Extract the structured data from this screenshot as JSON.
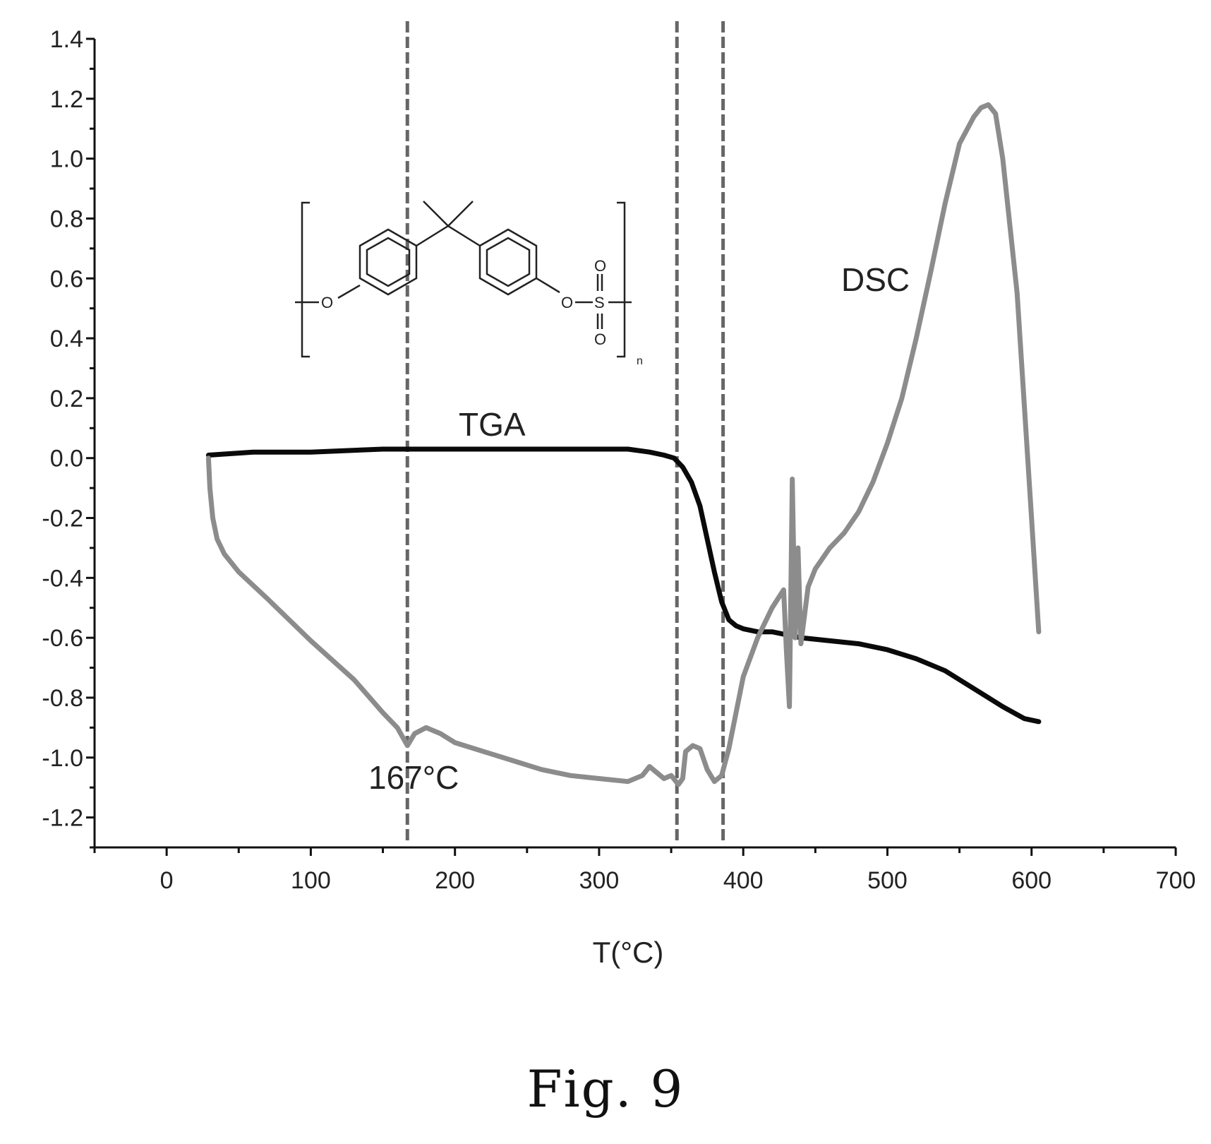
{
  "figure_caption": "Fig. 9",
  "chart_data": {
    "type": "line",
    "title": "",
    "xlabel": "T(°C)",
    "ylabel": "",
    "xlim": [
      -50,
      700
    ],
    "ylim": [
      -1.3,
      1.4
    ],
    "x_ticks": [
      0,
      100,
      200,
      300,
      400,
      500,
      600,
      700
    ],
    "x_tick_labels": [
      "0",
      "100",
      "200",
      "300",
      "400",
      "500",
      "600",
      "700"
    ],
    "y_ticks": [
      1.4,
      1.2,
      1.0,
      0.8,
      0.6,
      0.4,
      0.2,
      0.0,
      -0.2,
      -0.4,
      -0.6,
      -0.8,
      -1.0,
      -1.2
    ],
    "y_tick_labels": [
      "1.4",
      "1.2",
      "1.0",
      "0.8",
      "0.6",
      "0.4",
      "0.2",
      "0.0",
      "-0.2",
      "-0.4",
      "-0.6",
      "-0.8",
      "-1.0",
      "-1.2"
    ],
    "grid": false,
    "legend": "none",
    "series": [
      {
        "name": "TGA",
        "color": "#0a0a0a",
        "x": [
          29,
          60,
          100,
          150,
          200,
          250,
          300,
          320,
          335,
          345,
          352,
          358,
          364,
          370,
          375,
          380,
          385,
          390,
          395,
          400,
          410,
          420,
          440,
          460,
          480,
          500,
          520,
          540,
          560,
          580,
          595,
          605
        ],
        "y": [
          0.01,
          0.02,
          0.02,
          0.03,
          0.03,
          0.03,
          0.03,
          0.03,
          0.02,
          0.01,
          0.0,
          -0.03,
          -0.08,
          -0.16,
          -0.27,
          -0.38,
          -0.48,
          -0.54,
          -0.56,
          -0.57,
          -0.58,
          -0.58,
          -0.6,
          -0.61,
          -0.62,
          -0.64,
          -0.67,
          -0.71,
          -0.77,
          -0.83,
          -0.87,
          -0.88
        ]
      },
      {
        "name": "DSC",
        "color": "#8c8c8c",
        "x": [
          29,
          30,
          32,
          35,
          40,
          50,
          70,
          100,
          130,
          150,
          160,
          167,
          172,
          180,
          190,
          200,
          220,
          240,
          260,
          280,
          300,
          320,
          330,
          335,
          340,
          345,
          350,
          355,
          358,
          360,
          365,
          370,
          375,
          380,
          385,
          390,
          395,
          400,
          410,
          420,
          428,
          430,
          432,
          434,
          436,
          438,
          440,
          445,
          450,
          460,
          470,
          480,
          490,
          500,
          510,
          520,
          530,
          540,
          550,
          560,
          565,
          570,
          575,
          580,
          590,
          600,
          605
        ],
        "y": [
          0.0,
          -0.1,
          -0.2,
          -0.27,
          -0.32,
          -0.38,
          -0.47,
          -0.61,
          -0.74,
          -0.85,
          -0.9,
          -0.96,
          -0.92,
          -0.9,
          -0.92,
          -0.95,
          -0.98,
          -1.01,
          -1.04,
          -1.06,
          -1.07,
          -1.08,
          -1.06,
          -1.03,
          -1.05,
          -1.07,
          -1.06,
          -1.09,
          -1.07,
          -0.98,
          -0.96,
          -0.97,
          -1.04,
          -1.08,
          -1.06,
          -0.97,
          -0.85,
          -0.73,
          -0.6,
          -0.5,
          -0.44,
          -0.65,
          -0.83,
          -0.07,
          -0.6,
          -0.3,
          -0.62,
          -0.43,
          -0.37,
          -0.3,
          -0.25,
          -0.18,
          -0.08,
          0.05,
          0.2,
          0.4,
          0.62,
          0.85,
          1.05,
          1.14,
          1.17,
          1.18,
          1.15,
          1.0,
          0.55,
          -0.2,
          -0.58
        ]
      }
    ],
    "vertical_lines": [
      167,
      354,
      386
    ],
    "annotations": {
      "tga_label": "TGA",
      "dsc_label": "DSC",
      "temp_label": "167°C"
    },
    "inset_structure": {
      "atom_o_left": "O",
      "atom_o_right": "O",
      "atom_s": "S",
      "atom_o_top": "O",
      "atom_o_bottom": "O",
      "subscript": "n"
    }
  }
}
